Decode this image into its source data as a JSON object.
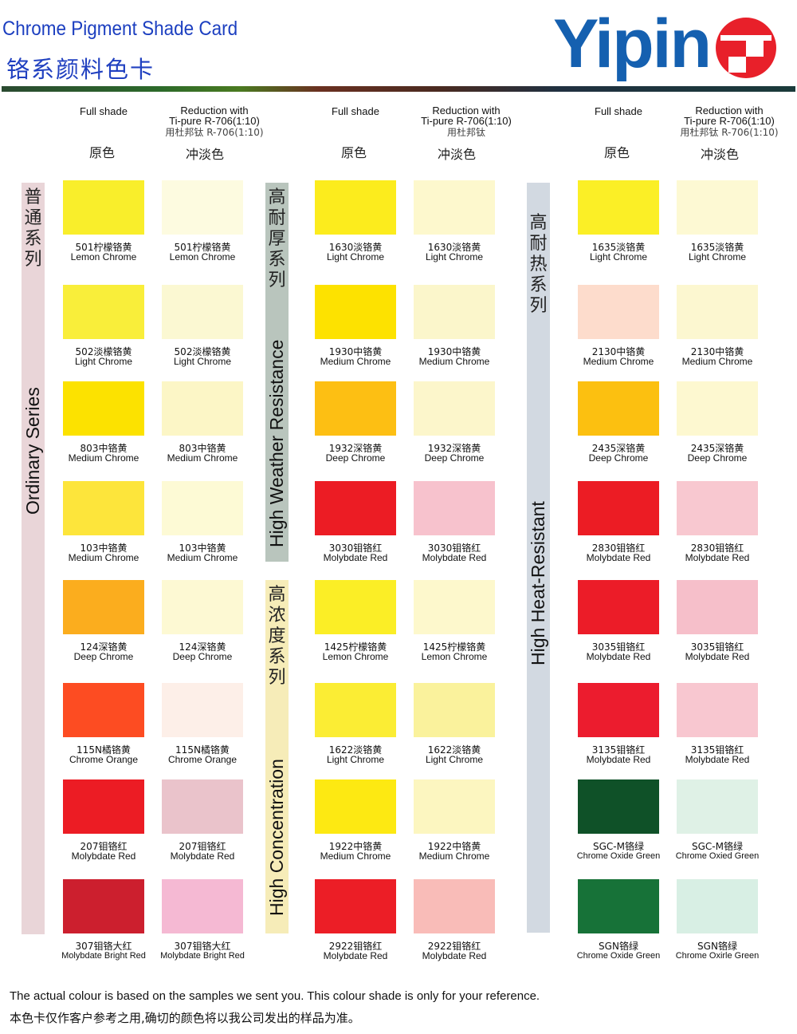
{
  "title_en": "Chrome Pigment Shade Card",
  "title_cn": "铬系颜料色卡",
  "logo": {
    "text": "Yipin",
    "color": "#1560b0",
    "emblem_color": "#e8202a"
  },
  "headers": [
    {
      "full_en": "Full shade",
      "full_cn": "原色",
      "red_1": "Reduction with",
      "red_2": "Ti-pure R-706(1:10)",
      "red_3": "用杜邦钛 R-706(1:10)",
      "red_cn": "冲淡色"
    },
    {
      "full_en": "Full shade",
      "full_cn": "原色",
      "red_1": "Reduction with",
      "red_2": "Ti-pure R-706(1:10)",
      "red_3": "用杜邦钛",
      "red_cn": "冲淡色"
    },
    {
      "full_en": "Full shade",
      "full_cn": "原色",
      "red_1": "Reduction with",
      "red_2": "Ti-pure R-706(1:10)",
      "red_3": "用杜邦钛 R-706(1:10)",
      "red_cn": "冲淡色"
    }
  ],
  "series_bars": [
    {
      "cn": "普通系列",
      "en": "Ordinary Series",
      "color": "#e9d5d8"
    },
    {
      "cn": "高耐厚系列",
      "en": "High Weather Resistance",
      "color": "#b9c5bd"
    },
    {
      "cn": "高浓度系列",
      "en": "High Concentration",
      "color": "#f6ecb8"
    },
    {
      "cn": "高耐热系列",
      "en": "High Heat-Resistant",
      "color": "#d2d9e1"
    }
  ],
  "groups": [
    [
      {
        "cn": "501柠檬铬黄",
        "en": "Lemon Chrome",
        "full": "#f9ee2b",
        "red": "#fdfbe0",
        "red_cn": "501柠檬铬黄",
        "red_en": "Lemon Chrome"
      },
      {
        "cn": "502淡檬铬黄",
        "en": "Light Chrome",
        "full": "#f9ee3a",
        "red": "#fbf8d2",
        "red_cn": "502淡檬铬黄",
        "red_en": "Light Chrome"
      },
      {
        "cn": "803中铬黄",
        "en": "Medium Chrome",
        "full": "#fce200",
        "red": "#fcf6c6",
        "red_cn": "803中铬黄",
        "red_en": "Medium Chrome"
      },
      {
        "cn": "103中铬黄",
        "en": "Medium Chrome",
        "full": "#fde53b",
        "red": "#fdfad5",
        "red_cn": "103中铬黄",
        "red_en": "Medium Chrome"
      },
      {
        "cn": "124深铬黄",
        "en": "Deep Chrome",
        "full": "#fbad1e",
        "red": "#fdf9d3",
        "red_cn": "124深铬黄",
        "red_en": "Deep Chrome"
      },
      {
        "cn": "115N橘铬黄",
        "en": "Chrome Orange",
        "full": "#fd4c22",
        "red": "#fdefe8",
        "red_cn": "115N橘铬黄",
        "red_en": "Chrome Orange"
      },
      {
        "cn": "207钼铬红",
        "en": "Molybdate Red",
        "full": "#ec1c24",
        "red": "#eac3cb",
        "red_cn": "207钼铬红",
        "red_en": "Molybdate Red"
      },
      {
        "cn": "307钼铬大红",
        "en": "Molybdate Bright Red",
        "full": "#cc1f2e",
        "red": "#f5b9d3",
        "red_cn": "307钼铬大红",
        "red_en": "Molybdate Bright Red"
      }
    ],
    [
      {
        "cn": "1630淡铬黄",
        "en": "Light Chrome",
        "full": "#fcec1d",
        "red": "#fdf8cd",
        "red_cn": "1630淡铬黄",
        "red_en": "Light Chrome"
      },
      {
        "cn": "1930中铬黄",
        "en": "Medium Chrome",
        "full": "#fde200",
        "red": "#fbf6cb",
        "red_cn": "1930中铬黄",
        "red_en": "Medium Chrome"
      },
      {
        "cn": "1932深铬黄",
        "en": "Deep Chrome",
        "full": "#fdbf13",
        "red": "#fcf6cb",
        "red_cn": "1932深铬黄",
        "red_en": "Deep Chrome"
      },
      {
        "cn": "3030钼铬红",
        "en": "Molybdate Red",
        "full": "#ec1c24",
        "red": "#f7c2cd",
        "red_cn": "3030钼铬红",
        "red_en": "Molybdate Red"
      },
      {
        "cn": "1425柠檬铬黄",
        "en": "Lemon Chrome",
        "full": "#fbee26",
        "red": "#fdf8cc",
        "red_cn": "1425柠檬铬黄",
        "red_en": "Lemon Chrome"
      },
      {
        "cn": "1622淡铬黄",
        "en": "Light Chrome",
        "full": "#fbed34",
        "red": "#faf29c",
        "red_cn": "1622淡铬黄",
        "red_en": "Light Chrome"
      },
      {
        "cn": "1922中铬黄",
        "en": "Medium Chrome",
        "full": "#fde912",
        "red": "#fcf6c0",
        "red_cn": "1922中铬黄",
        "red_en": "Medium Chrome"
      },
      {
        "cn": "2922钼铬红",
        "en": "Molybdate Red",
        "full": "#ec1e26",
        "red": "#f9bcb8",
        "red_cn": "2922钼铬红",
        "red_en": "Molybdate Red"
      }
    ],
    [
      {
        "cn": "1635淡铬黄",
        "en": "Light Chrome",
        "full": "#fbef26",
        "red": "#fdf9d3",
        "red_cn": "1635淡铬黄",
        "red_en": "Light Chrome"
      },
      {
        "cn": "2130中铬黄",
        "en": "Medium Chrome",
        "full": "#fddccc",
        "red": "#fcf7d0",
        "red_cn": "2130中铬黄",
        "red_en": "Medium Chrome"
      },
      {
        "cn": "2435深铬黄",
        "en": "Deep Chrome",
        "full": "#fcc010",
        "red": "#fdf8d0",
        "red_cn": "2435深铬黄",
        "red_en": "Deep Chrome"
      },
      {
        "cn": "2830钼铬红",
        "en": "Molybdate Red",
        "full": "#ec1c24",
        "red": "#f8c8d0",
        "red_cn": "2830钼铬红",
        "red_en": "Molybdate Red"
      },
      {
        "cn": "3035钼铬红",
        "en": "Molybdate Red",
        "full": "#ec1c28",
        "red": "#f6bfca",
        "red_cn": "3035钼铬红",
        "red_en": "Molybdate Red"
      },
      {
        "cn": "3135钼铬红",
        "en": "Molybdate Red",
        "full": "#ec1c2e",
        "red": "#f8c7d0",
        "red_cn": "3135钼铬红",
        "red_en": "Molybdate Red"
      },
      {
        "cn": "SGC-M铬绿",
        "en": "Chrome Oxide Green",
        "full": "#0f5128",
        "red": "#dff1e6",
        "red_cn": "SGC-M铬绿",
        "red_en": "Chrome Oxied Green"
      },
      {
        "cn": "SGN铬绿",
        "en": "Chrome Oxide Green",
        "full": "#177238",
        "red": "#d8efe4",
        "red_cn": "SGN铬绿",
        "red_en": "Chrome Oxirle Green"
      }
    ]
  ],
  "footer_en": "The actual colour is based on the samples we sent you. This colour shade is only for your reference.",
  "footer_cn": "本色卡仅作客户参考之用,确切的颜色将以我公司发出的样品为准。"
}
